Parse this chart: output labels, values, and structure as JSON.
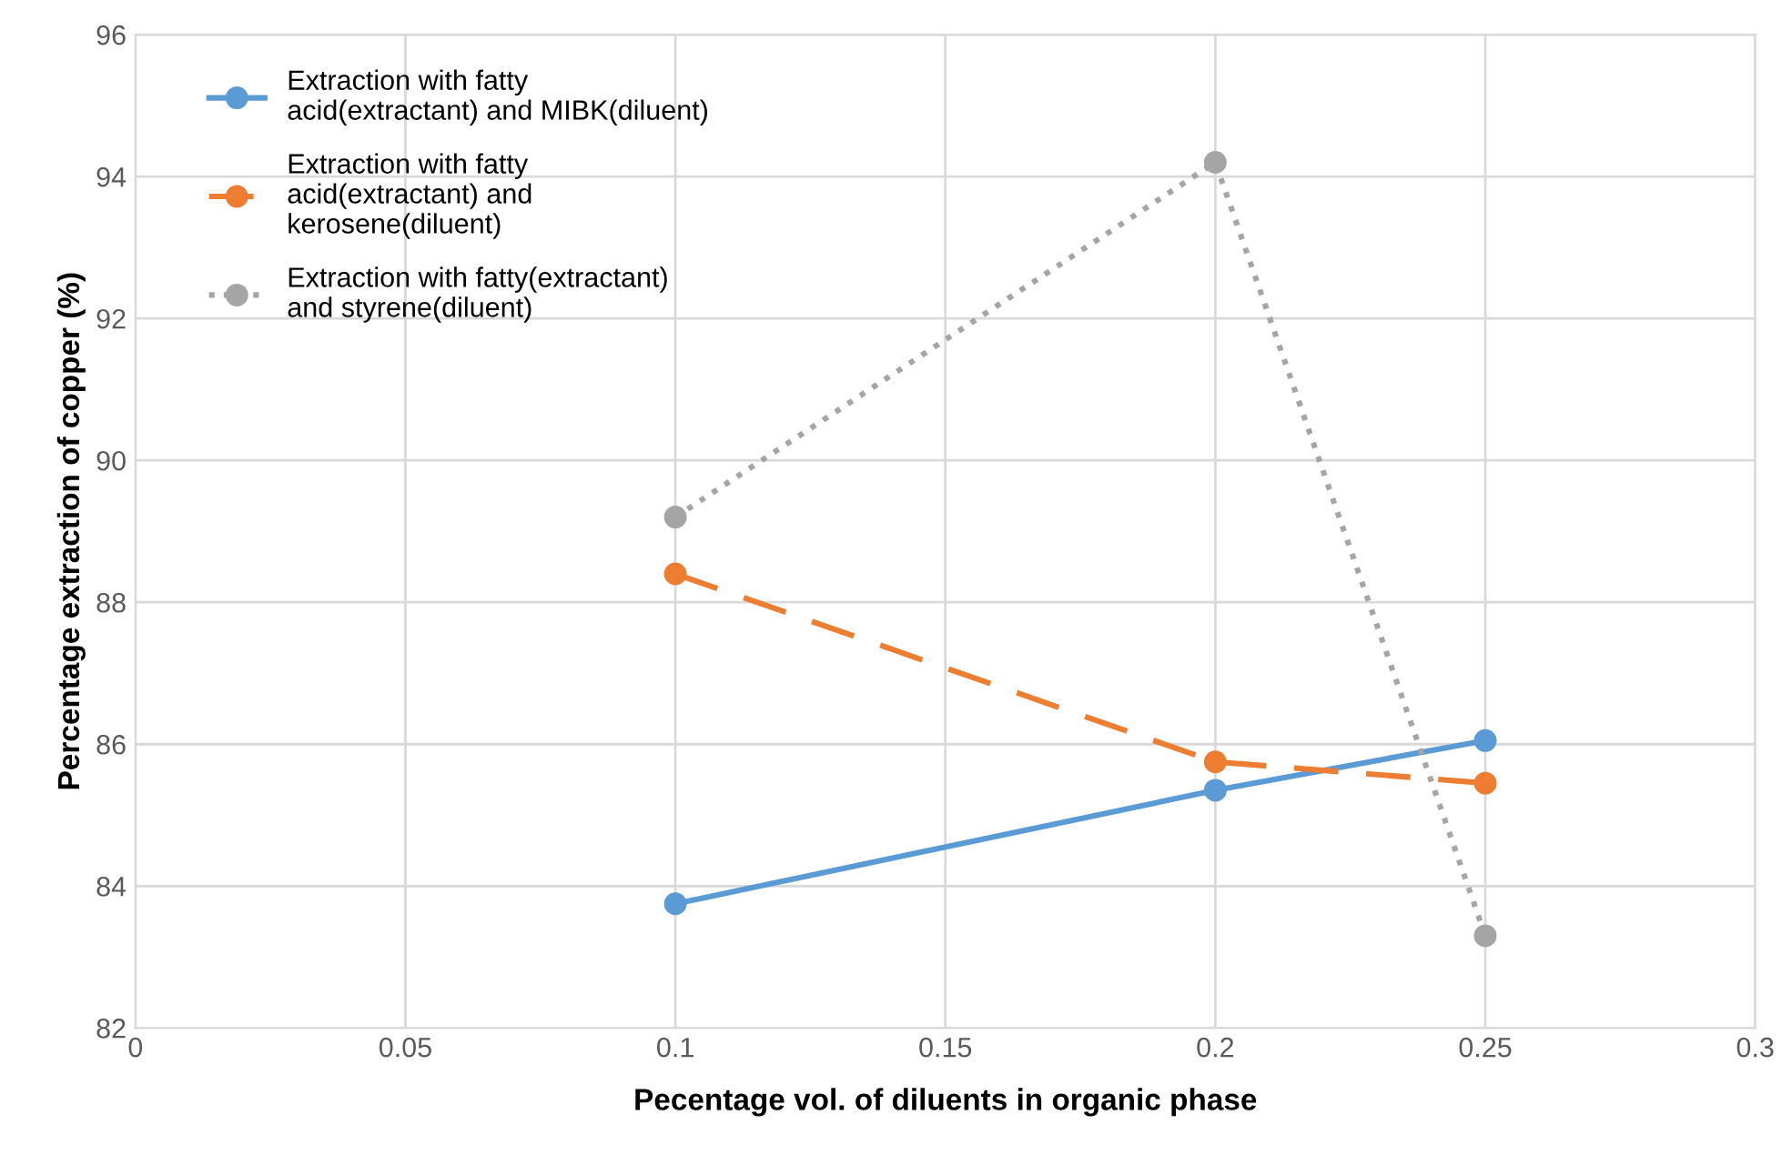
{
  "chart_data": {
    "type": "line",
    "xlabel": "Pecentage vol. of diluents in organic phase",
    "ylabel": "Percentage extraction of copper (%)",
    "x": [
      0.1,
      0.2,
      0.25
    ],
    "series": [
      {
        "name": "Extraction with fatty\nacid(extractant) and MIBK(diluent)",
        "color": "#5b9bd5",
        "values": [
          83.75,
          85.35,
          86.05
        ],
        "line_style": "solid"
      },
      {
        "name": "Extraction with fatty\nacid(extractant) and\nkerosene(diluent)",
        "color": "#ed7d31",
        "values": [
          88.4,
          85.75,
          85.45
        ],
        "line_style": "dashed"
      },
      {
        "name": "Extraction with fatty(extractant)\nand styrene(diluent)",
        "color": "#a5a5a5",
        "values": [
          89.2,
          94.2,
          83.3
        ],
        "line_style": "dotted"
      }
    ],
    "xlim": [
      0,
      0.3
    ],
    "xticks": [
      0,
      0.05,
      0.1,
      0.15,
      0.2,
      0.25,
      0.3
    ],
    "ylim": [
      82,
      96
    ],
    "yticks": [
      82,
      84,
      86,
      88,
      90,
      92,
      94,
      96
    ],
    "grid": true,
    "legend": "top left",
    "marker": "circle"
  }
}
